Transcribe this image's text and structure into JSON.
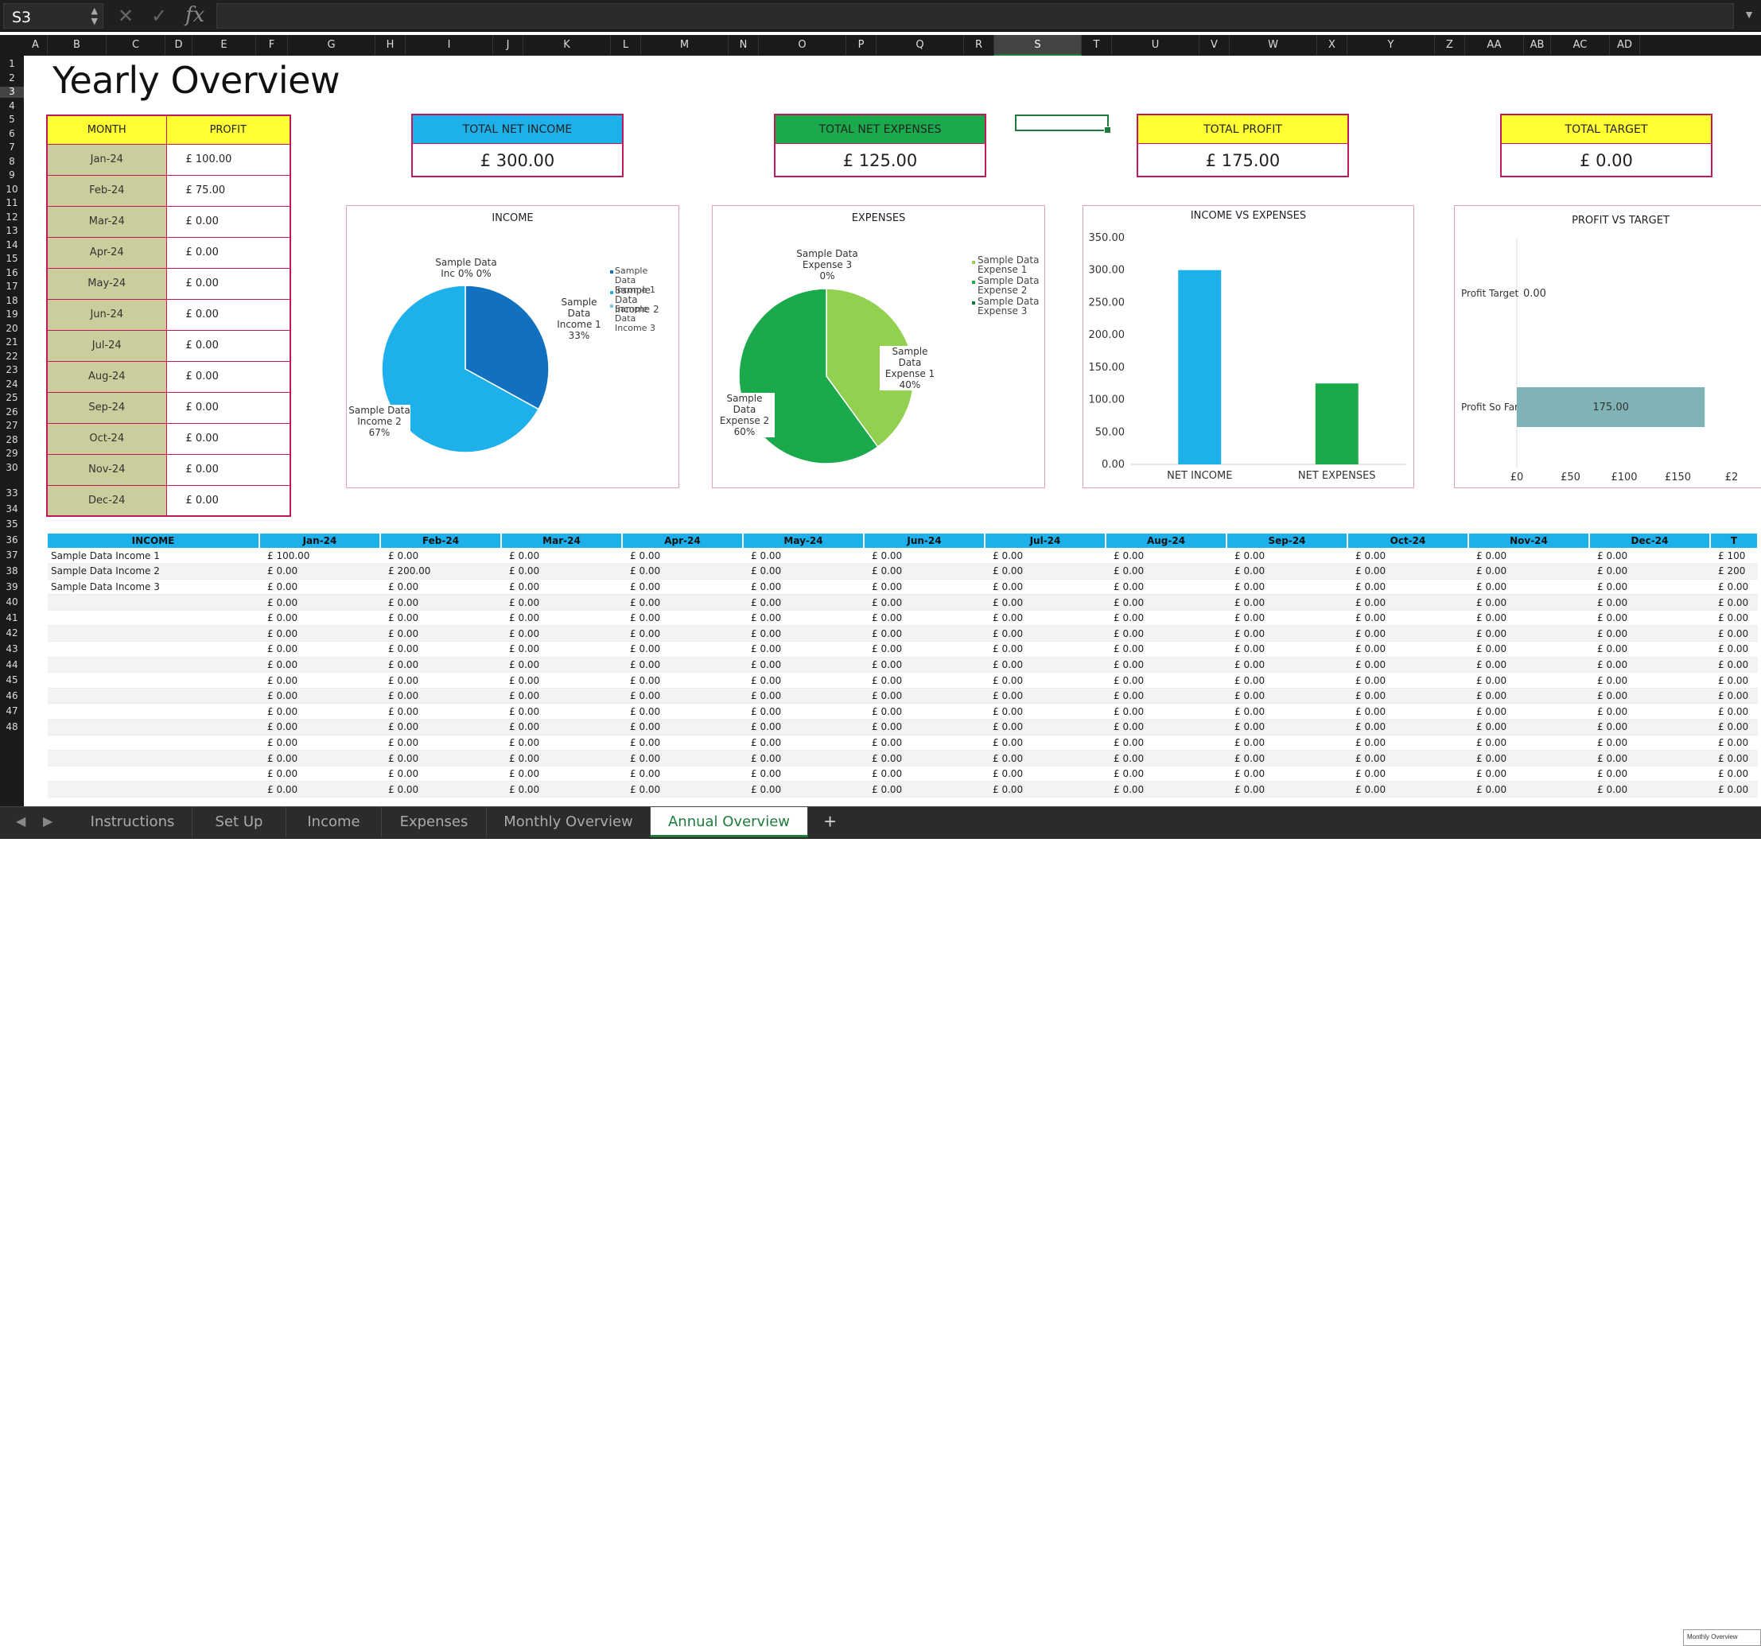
{
  "formula_bar": {
    "name_box": "S3",
    "fx": "fx",
    "value": ""
  },
  "columns": [
    "A",
    "B",
    "C",
    "D",
    "E",
    "F",
    "G",
    "H",
    "I",
    "J",
    "K",
    "L",
    "M",
    "N",
    "O",
    "P",
    "Q",
    "R",
    "S",
    "T",
    "U",
    "V",
    "W",
    "X",
    "Y",
    "Z",
    "AA",
    "AB",
    "AC",
    "AD"
  ],
  "selected_column": "S",
  "selected_row": 3,
  "rows": [
    1,
    2,
    3,
    4,
    5,
    6,
    7,
    8,
    9,
    10,
    11,
    12,
    13,
    14,
    15,
    16,
    17,
    18,
    19,
    20,
    21,
    22,
    23,
    24,
    25,
    26,
    27,
    28,
    29,
    30,
    33,
    34,
    35,
    36,
    37,
    38,
    39,
    40,
    41,
    42,
    43,
    44,
    45,
    46,
    47,
    48
  ],
  "title": "Yearly Overview",
  "month_table": {
    "headers": [
      "MONTH",
      "PROFIT"
    ],
    "rows": [
      {
        "month": "Jan-24",
        "profit": "£  100.00"
      },
      {
        "month": "Feb-24",
        "profit": "£  75.00"
      },
      {
        "month": "Mar-24",
        "profit": "£  0.00"
      },
      {
        "month": "Apr-24",
        "profit": "£  0.00"
      },
      {
        "month": "May-24",
        "profit": "£  0.00"
      },
      {
        "month": "Jun-24",
        "profit": "£  0.00"
      },
      {
        "month": "Jul-24",
        "profit": "£  0.00"
      },
      {
        "month": "Aug-24",
        "profit": "£  0.00"
      },
      {
        "month": "Sep-24",
        "profit": "£  0.00"
      },
      {
        "month": "Oct-24",
        "profit": "£  0.00"
      },
      {
        "month": "Nov-24",
        "profit": "£  0.00"
      },
      {
        "month": "Dec-24",
        "profit": "£  0.00"
      }
    ]
  },
  "kpis": [
    {
      "label": "TOTAL NET INCOME",
      "value": "£  300.00",
      "color": "#1eb0ea"
    },
    {
      "label": "TOTAL NET EXPENSES",
      "value": "£  125.00",
      "color": "#1aaa4c"
    },
    {
      "label": "TOTAL PROFIT",
      "value": "£  175.00",
      "color": "#ffff33"
    },
    {
      "label": "TOTAL TARGET",
      "value": "£  0.00",
      "color": "#ffff33"
    }
  ],
  "chart_data": [
    {
      "type": "pie",
      "title": "INCOME",
      "labels": [
        "Sample Data Income 1",
        "Sample Data Income 2",
        "Sample Data Income 3"
      ],
      "values": [
        33,
        67,
        0
      ],
      "colors": [
        "#1170c0",
        "#1eb0ea",
        "#6fc8f0"
      ],
      "data_labels": [
        "Sample Data Income 1 33%",
        "Sample Data Income 2 67%",
        "Sample Data Inc 0% 0%"
      ]
    },
    {
      "type": "pie",
      "title": "EXPENSES",
      "labels": [
        "Sample Data Expense 1",
        "Sample Data Expense 2",
        "Sample Data Expense 3"
      ],
      "values": [
        40,
        60,
        0
      ],
      "colors": [
        "#92d050",
        "#1aaa4c",
        "#0e7a35"
      ],
      "data_labels": [
        "Sample Data Expense 1 40%",
        "Sample Data Expense 2 60%",
        "Sample Data Expense 3 0%"
      ]
    },
    {
      "type": "bar",
      "title": "INCOME VS EXPENSES",
      "categories": [
        "NET INCOME",
        "NET EXPENSES"
      ],
      "values": [
        300,
        125
      ],
      "colors": [
        "#1eb0ea",
        "#1aaa4c"
      ],
      "ylim": [
        0,
        350
      ],
      "yticks": [
        "0.00",
        "50.00",
        "100.00",
        "150.00",
        "200.00",
        "250.00",
        "300.00",
        "350.00"
      ]
    },
    {
      "type": "bar",
      "orientation": "horizontal",
      "title": "PROFIT VS TARGET",
      "categories": [
        "Profit Target",
        "Profit So Far"
      ],
      "values": [
        0,
        175
      ],
      "value_labels": [
        "0.00",
        "175.00"
      ],
      "color": "#7fb3b5",
      "xticks": [
        "£0",
        "£50",
        "£100",
        "£150",
        "£2"
      ]
    }
  ],
  "income_table": {
    "headers": [
      "INCOME",
      "Jan-24",
      "Feb-24",
      "Mar-24",
      "Apr-24",
      "May-24",
      "Jun-24",
      "Jul-24",
      "Aug-24",
      "Sep-24",
      "Oct-24",
      "Nov-24",
      "Dec-24",
      "T"
    ],
    "names": [
      "Sample Data Income 1",
      "Sample Data Income 2",
      "Sample Data Income 3",
      "",
      "",
      "",
      "",
      "",
      "",
      "",
      "",
      "",
      "",
      "",
      "",
      ""
    ],
    "first": [
      "£  100.00",
      "£  0.00",
      "£  0.00"
    ],
    "second": [
      "£  0.00",
      "£  200.00",
      "£  0.00"
    ],
    "zero": "£  0.00",
    "total": [
      "£  100",
      "£  200"
    ]
  },
  "tabs": [
    "Instructions",
    "Set Up",
    "Income",
    "Expenses",
    "Monthly Overview",
    "Annual Overview"
  ],
  "active_tab": "Annual Overview",
  "mini_label": "Monthly Overview"
}
